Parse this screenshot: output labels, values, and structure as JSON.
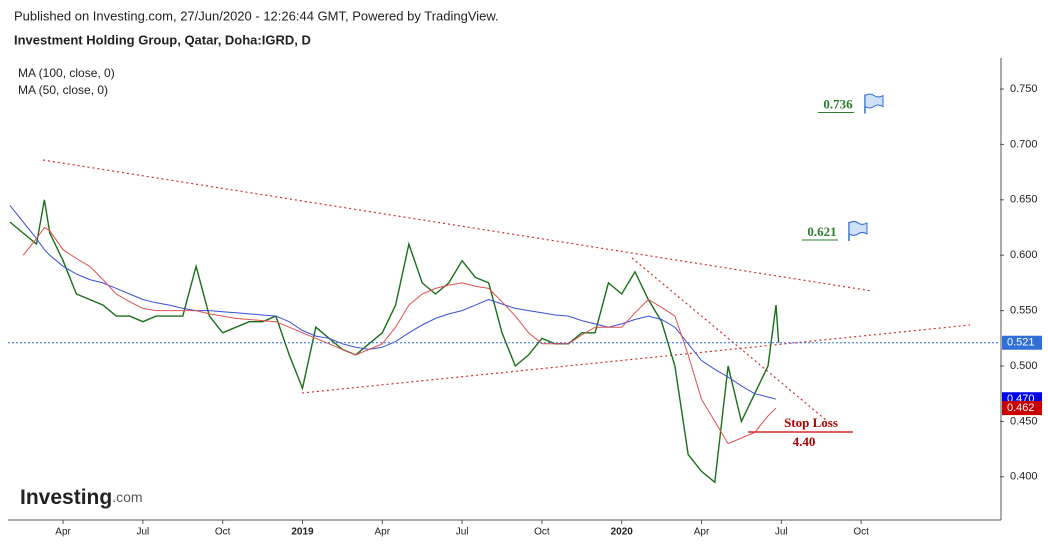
{
  "chart_data": {
    "type": "line",
    "source_note": "Published on Investing.com, 27/Jun/2020 - 12:26:44 GMT, Powered by TradingView.",
    "title": "Investment Holding Group, Qatar, Doha:IGRD, D",
    "x": [
      1.0,
      1.5,
      2.0,
      2.3,
      2.5,
      3.0,
      3.5,
      4.0,
      4.5,
      5.0,
      5.5,
      6.0,
      6.5,
      7.0,
      7.5,
      8.0,
      8.5,
      9.0,
      9.5,
      10.0,
      10.5,
      11.0,
      11.5,
      12.0,
      12.5,
      13.0,
      13.5,
      14.0,
      14.5,
      15.0,
      15.5,
      16.0,
      16.5,
      17.0,
      17.5,
      18.0,
      18.5,
      19.0,
      19.5,
      20.0,
      20.5,
      21.0,
      21.5,
      22.0,
      22.5,
      23.0,
      23.5,
      24.0,
      24.5,
      25.0,
      25.5,
      26.0,
      26.5,
      27.0,
      27.5,
      28.0,
      28.5,
      29.0,
      29.5,
      29.8,
      29.9
    ],
    "series": [
      {
        "color": "#1a6e1a",
        "values": [
          0.63,
          0.62,
          0.61,
          0.65,
          0.62,
          0.595,
          0.565,
          0.56,
          0.555,
          0.545,
          0.545,
          0.54,
          0.545,
          0.545,
          0.545,
          0.59,
          0.545,
          0.53,
          0.535,
          0.54,
          0.54,
          0.545,
          0.51,
          0.48,
          0.535,
          0.525,
          0.515,
          0.51,
          0.52,
          0.53,
          0.555,
          0.61,
          0.575,
          0.565,
          0.575,
          0.595,
          0.58,
          0.575,
          0.53,
          0.5,
          0.51,
          0.525,
          0.52,
          0.52,
          0.53,
          0.53,
          0.575,
          0.565,
          0.585,
          0.56,
          0.54,
          0.5,
          0.42,
          0.405,
          0.395,
          0.5,
          0.45,
          0.475,
          0.5,
          0.555,
          0.521
        ]
      },
      {
        "name": "MA (100, close, 0)",
        "color": "#3b4fd8",
        "values": [
          0.645,
          0.63,
          0.615,
          0.605,
          0.6,
          0.59,
          0.583,
          0.578,
          0.575,
          0.57,
          0.565,
          0.56,
          0.557,
          0.555,
          0.552,
          0.55,
          0.55,
          0.549,
          0.548,
          0.547,
          0.546,
          0.545,
          0.54,
          0.532,
          0.527,
          0.525,
          0.52,
          0.517,
          0.515,
          0.517,
          0.522,
          0.53,
          0.537,
          0.543,
          0.547,
          0.55,
          0.555,
          0.56,
          0.556,
          0.552,
          0.55,
          0.548,
          0.546,
          0.545,
          0.541,
          0.538,
          0.535,
          0.538,
          0.542,
          0.545,
          0.542,
          0.535,
          0.52,
          0.505,
          0.497,
          0.49,
          0.482,
          0.475,
          0.472,
          0.47,
          null
        ]
      },
      {
        "name": "MA (50, close, 0)",
        "color": "#e05050",
        "values": [
          null,
          0.6,
          0.615,
          0.625,
          0.622,
          0.605,
          0.597,
          0.59,
          0.578,
          0.565,
          0.558,
          0.552,
          0.55,
          0.55,
          0.55,
          0.55,
          0.547,
          0.545,
          0.543,
          0.542,
          0.541,
          0.54,
          0.535,
          0.53,
          0.525,
          0.52,
          0.515,
          0.51,
          0.515,
          0.52,
          0.535,
          0.555,
          0.565,
          0.57,
          0.573,
          0.575,
          0.572,
          0.57,
          0.558,
          0.545,
          0.53,
          0.52,
          0.52,
          0.52,
          0.528,
          0.535,
          0.535,
          0.535,
          0.548,
          0.56,
          0.553,
          0.545,
          0.51,
          0.47,
          0.45,
          0.43,
          0.435,
          0.44,
          0.455,
          0.462,
          null
        ]
      }
    ],
    "last_values": [
      {
        "value": 0.521,
        "label": "0.521",
        "color": "#2f6fd6"
      },
      {
        "value": 0.47,
        "label": "0.470",
        "color": "#0000ee"
      },
      {
        "value": 0.462,
        "label": "0.462",
        "color": "#cc0000"
      }
    ],
    "targets": [
      {
        "value": 0.736,
        "label": "0.736"
      },
      {
        "value": 0.621,
        "label": "0.621"
      }
    ],
    "stop_loss": {
      "title": "Stop Loss",
      "text": "4.40"
    },
    "logo": {
      "main": "Investing",
      "suffix": ".com"
    },
    "xlim": [
      0.93,
      38.22
    ],
    "xticks": [
      {
        "value": 3,
        "label": "Apr"
      },
      {
        "value": 6,
        "label": "Jul"
      },
      {
        "value": 9,
        "label": "Oct"
      },
      {
        "value": 12,
        "label": "2019"
      },
      {
        "value": 15,
        "label": "Apr"
      },
      {
        "value": 18,
        "label": "Jul"
      },
      {
        "value": 21,
        "label": "Oct"
      },
      {
        "value": 24,
        "label": "2020"
      },
      {
        "value": 27,
        "label": "Apr"
      },
      {
        "value": 30,
        "label": "Jul"
      },
      {
        "value": 33,
        "label": "Oct"
      }
    ],
    "ylim": [
      0.361,
      0.778
    ],
    "yticks": [
      {
        "value": 0.4,
        "label": "0.400"
      },
      {
        "value": 0.45,
        "label": "0.450"
      },
      {
        "value": 0.5,
        "label": "0.500"
      },
      {
        "value": 0.55,
        "label": "0.550"
      },
      {
        "value": 0.6,
        "label": "0.600"
      },
      {
        "value": 0.65,
        "label": "0.650"
      },
      {
        "value": 0.7,
        "label": "0.700"
      },
      {
        "value": 0.75,
        "label": "0.750"
      }
    ]
  }
}
